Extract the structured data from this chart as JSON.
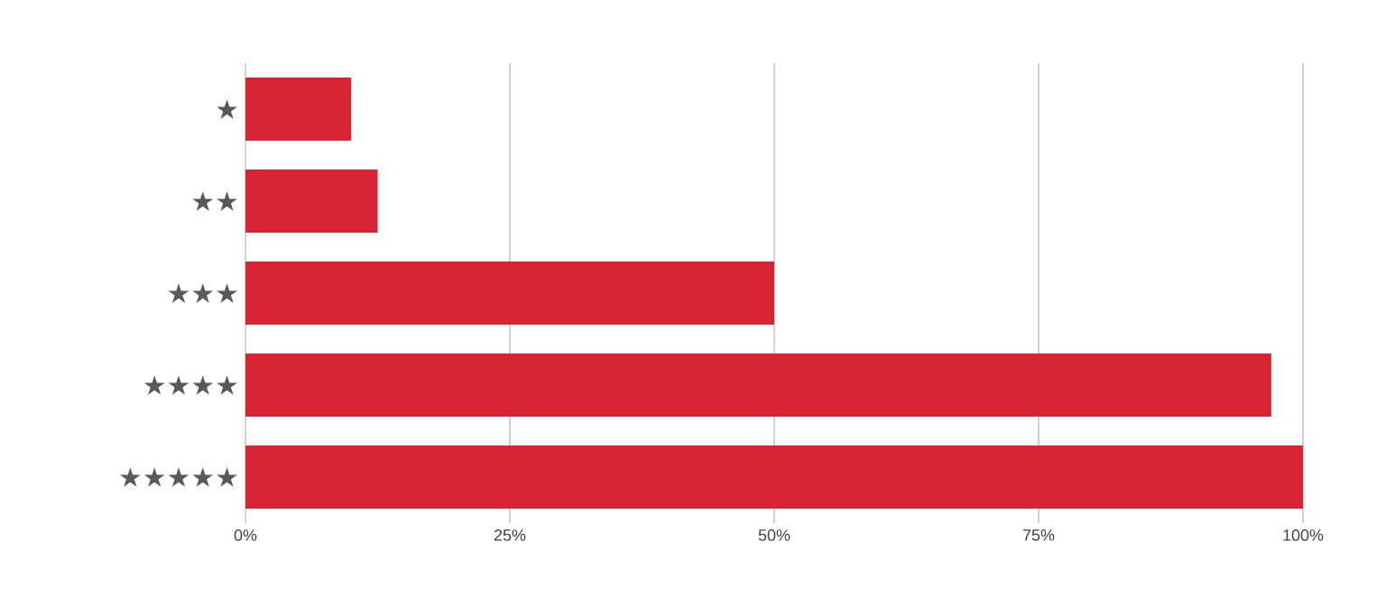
{
  "chart_data": {
    "type": "bar",
    "orientation": "horizontal",
    "categories": [
      "★",
      "★★",
      "★★★",
      "★★★★",
      "★★★★★"
    ],
    "values": [
      10,
      12.5,
      50,
      97,
      100
    ],
    "color": "#d62433",
    "xlim": [
      0,
      100
    ],
    "xticks": [
      {
        "value": 0,
        "label": "0%"
      },
      {
        "value": 25,
        "label": "25%"
      },
      {
        "value": 50,
        "label": "50%"
      },
      {
        "value": 75,
        "label": "75%"
      },
      {
        "value": 100,
        "label": "100%"
      }
    ],
    "grid": "x"
  }
}
